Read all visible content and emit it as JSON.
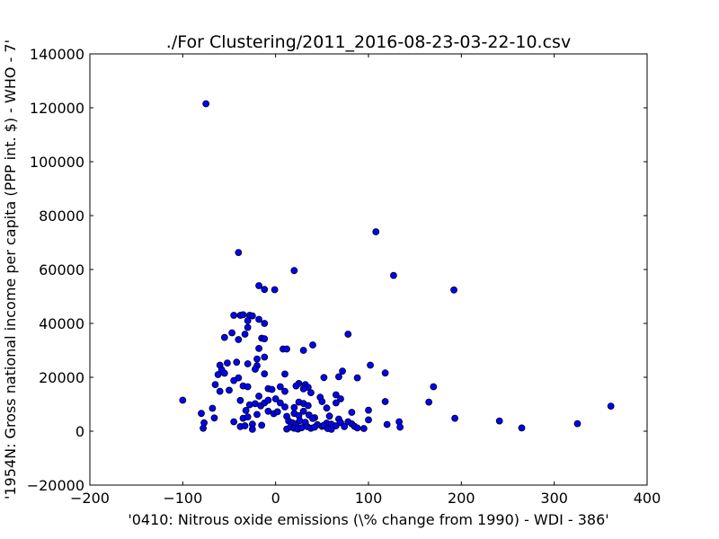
{
  "chart_data": {
    "type": "scatter",
    "title": "./For Clustering/2011_2016-08-23-03-22-10.csv",
    "xlabel": "'0410: Nitrous oxide emissions  (\\% change from 1990) - WDI - 386'",
    "ylabel": "'1954N: Gross national income per capita (PPP int. $) - WHO - 7'",
    "xlim": [
      -200,
      400
    ],
    "ylim": [
      -20000,
      140000
    ],
    "xticks": [
      "−200",
      "−100",
      "0",
      "100",
      "200",
      "300",
      "400"
    ],
    "yticks": [
      "−20000",
      "0",
      "20000",
      "40000",
      "60000",
      "80000",
      "100000",
      "120000",
      "140000"
    ],
    "grid": false,
    "marker_color": "#0000ff",
    "points": [
      [
        -75,
        121500
      ],
      [
        -40,
        66300
      ],
      [
        108,
        74000
      ],
      [
        127,
        57800
      ],
      [
        20,
        59600
      ],
      [
        192,
        52400
      ],
      [
        -18,
        54000
      ],
      [
        -12,
        52600
      ],
      [
        -1,
        52500
      ],
      [
        -45,
        43000
      ],
      [
        -38,
        43000
      ],
      [
        -35,
        43200
      ],
      [
        -28,
        43000
      ],
      [
        -25,
        42800
      ],
      [
        -18,
        41500
      ],
      [
        -30,
        41000
      ],
      [
        -12,
        40000
      ],
      [
        -30,
        38500
      ],
      [
        -47,
        36500
      ],
      [
        -33,
        36000
      ],
      [
        -55,
        34800
      ],
      [
        -15,
        34500
      ],
      [
        -40,
        34000
      ],
      [
        -12,
        34300
      ],
      [
        78,
        36000
      ],
      [
        40,
        32000
      ],
      [
        -18,
        30700
      ],
      [
        8,
        30500
      ],
      [
        12,
        30500
      ],
      [
        30,
        30000
      ],
      [
        -12,
        27500
      ],
      [
        -20,
        26800
      ],
      [
        -60,
        24500
      ],
      [
        -52,
        25300
      ],
      [
        -42,
        25600
      ],
      [
        -30,
        25000
      ],
      [
        -20,
        24300
      ],
      [
        -22,
        23000
      ],
      [
        -58,
        22800
      ],
      [
        -55,
        21500
      ],
      [
        -62,
        21000
      ],
      [
        -12,
        21300
      ],
      [
        10,
        21200
      ],
      [
        102,
        24500
      ],
      [
        118,
        21600
      ],
      [
        -65,
        17300
      ],
      [
        -40,
        19800
      ],
      [
        -45,
        18800
      ],
      [
        -35,
        16800
      ],
      [
        -50,
        15200
      ],
      [
        -60,
        14800
      ],
      [
        -30,
        16500
      ],
      [
        -18,
        13000
      ],
      [
        -8,
        15800
      ],
      [
        -4,
        15500
      ],
      [
        5,
        16500
      ],
      [
        10,
        14800
      ],
      [
        25,
        17700
      ],
      [
        22,
        16800
      ],
      [
        32,
        17300
      ],
      [
        35,
        16300
      ],
      [
        30,
        15700
      ],
      [
        38,
        14300
      ],
      [
        -38,
        11400
      ],
      [
        -28,
        9800
      ],
      [
        -22,
        10200
      ],
      [
        -16,
        9400
      ],
      [
        -12,
        10500
      ],
      [
        -8,
        11500
      ],
      [
        0,
        12000
      ],
      [
        5,
        10500
      ],
      [
        10,
        9000
      ],
      [
        20,
        8800
      ],
      [
        25,
        10800
      ],
      [
        30,
        10300
      ],
      [
        35,
        9500
      ],
      [
        48,
        12600
      ],
      [
        50,
        11000
      ],
      [
        55,
        8600
      ],
      [
        65,
        13500
      ],
      [
        70,
        12000
      ],
      [
        65,
        10500
      ],
      [
        52,
        19900
      ],
      [
        68,
        20200
      ],
      [
        72,
        22300
      ],
      [
        88,
        19800
      ],
      [
        -100,
        11500
      ],
      [
        118,
        11000
      ],
      [
        -80,
        6600
      ],
      [
        -68,
        8500
      ],
      [
        -32,
        7700
      ],
      [
        -20,
        6200
      ],
      [
        -8,
        7400
      ],
      [
        -2,
        6500
      ],
      [
        2,
        7200
      ],
      [
        12,
        5500
      ],
      [
        20,
        6600
      ],
      [
        25,
        5800
      ],
      [
        30,
        7400
      ],
      [
        36,
        6000
      ],
      [
        42,
        5000
      ],
      [
        58,
        5600
      ],
      [
        68,
        4500
      ],
      [
        82,
        7000
      ],
      [
        100,
        7800
      ],
      [
        100,
        4200
      ],
      [
        -66,
        4900
      ],
      [
        -45,
        3500
      ],
      [
        -35,
        4800
      ],
      [
        -30,
        5300
      ],
      [
        -25,
        2600
      ],
      [
        -15,
        2200
      ],
      [
        14,
        3800
      ],
      [
        18,
        3100
      ],
      [
        22,
        2700
      ],
      [
        26,
        3900
      ],
      [
        32,
        3300
      ],
      [
        40,
        4700
      ],
      [
        45,
        2400
      ],
      [
        50,
        1800
      ],
      [
        55,
        3000
      ],
      [
        60,
        2600
      ],
      [
        65,
        2000
      ],
      [
        70,
        3200
      ],
      [
        74,
        1700
      ],
      [
        78,
        3500
      ],
      [
        82,
        2700
      ],
      [
        85,
        1800
      ],
      [
        88,
        1200
      ],
      [
        95,
        1000
      ],
      [
        -78,
        1100
      ],
      [
        -77,
        3100
      ],
      [
        -38,
        1700
      ],
      [
        -33,
        2000
      ],
      [
        -25,
        700
      ],
      [
        12,
        800
      ],
      [
        16,
        1500
      ],
      [
        20,
        1100
      ],
      [
        24,
        800
      ],
      [
        28,
        1300
      ],
      [
        34,
        1700
      ],
      [
        38,
        1100
      ],
      [
        42,
        1500
      ],
      [
        52,
        2200
      ],
      [
        56,
        1000
      ],
      [
        60,
        700
      ],
      [
        120,
        2500
      ],
      [
        133,
        3500
      ],
      [
        134,
        1500
      ],
      [
        165,
        10800
      ],
      [
        170,
        16500
      ],
      [
        193,
        4800
      ],
      [
        241,
        3800
      ],
      [
        265,
        1200
      ],
      [
        325,
        2800
      ],
      [
        361,
        9300
      ]
    ]
  }
}
